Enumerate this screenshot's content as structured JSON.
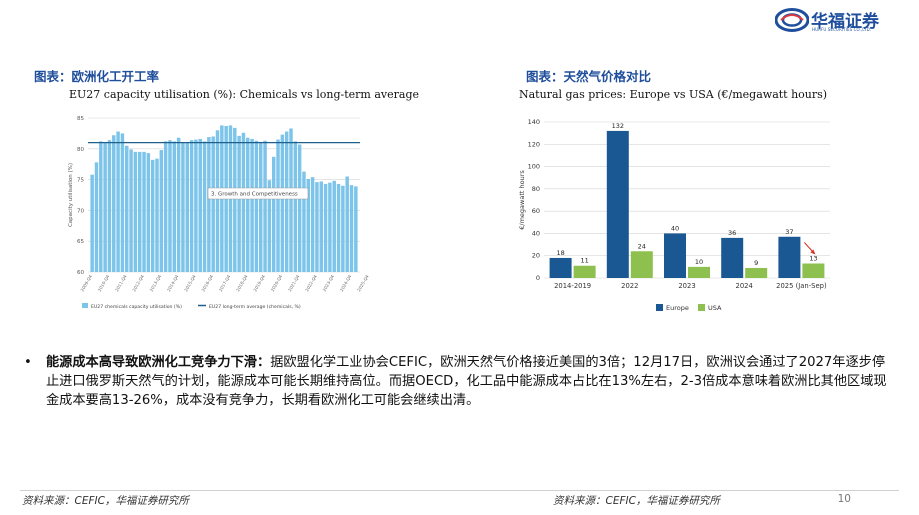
{
  "header": {
    "logo_name": "华福证券",
    "logo_sub": "HUAFU SECURITIES CO.,LTD."
  },
  "left_figure": {
    "section_title": "图表：欧洲化工开工率",
    "chart_title": "EU27 capacity utilisation (%): Chemicals vs long-term average"
  },
  "right_figure": {
    "section_title": "图表：天然气价格对比",
    "chart_title": "Natural gas prices: Europe vs USA (€/megawatt hours)"
  },
  "chart_data": [
    {
      "type": "bar",
      "title": "EU27 capacity utilisation (%): Chemicals vs long-term average",
      "ylabel": "Capacity utilisation (%)",
      "ylim": [
        60,
        85
      ],
      "yticks": [
        60,
        65,
        70,
        75,
        80,
        85
      ],
      "xtick_labels": [
        "2009-Q4",
        "2010-Q4",
        "2011-Q4",
        "2012-Q4",
        "2013-Q4",
        "2014-Q4",
        "2015-Q4",
        "2016-Q4",
        "2017-Q4",
        "2018-Q4",
        "2019-Q4",
        "2020-Q4",
        "2021-Q4",
        "2022-Q4",
        "2023-Q4",
        "2024-Q4",
        "2025-Q4"
      ],
      "series": [
        {
          "name": "EU27 chemicals capacity utilisation (%)",
          "color": "#7cc4ea",
          "values": [
            75.8,
            77.8,
            81.2,
            81.0,
            81.4,
            82.2,
            82.8,
            82.5,
            80.5,
            79.9,
            79.5,
            79.5,
            79.5,
            79.3,
            78.2,
            78.4,
            79.8,
            81.2,
            81.4,
            81.2,
            81.8,
            81.1,
            81.0,
            81.4,
            81.5,
            81.6,
            81.2,
            81.9,
            82.0,
            83.0,
            83.8,
            83.7,
            83.8,
            83.4,
            82.1,
            82.6,
            81.8,
            81.6,
            81.3,
            81.0,
            81.3,
            74.9,
            78.7,
            81.5,
            82.3,
            82.8,
            83.3,
            81.2,
            80.7,
            76.3,
            75.1,
            75.4,
            74.6,
            74.7,
            74.3,
            74.5,
            74.8,
            74.3,
            74.0,
            75.5,
            74.1,
            73.9
          ]
        },
        {
          "name": "EU27 long-term average (chemicals, %)",
          "type": "line",
          "color": "#1f5f8c",
          "values": [
            81.0
          ]
        }
      ],
      "annotations": [
        "3. Growth and Competitiveness"
      ],
      "legend": "bottom",
      "grid": true
    },
    {
      "type": "bar",
      "title": "Natural gas prices: Europe vs USA (€/megawatt hours)",
      "ylabel": "€/megawatt hours",
      "ylim": [
        0,
        140
      ],
      "yticks": [
        0,
        20,
        40,
        60,
        80,
        100,
        120,
        140
      ],
      "categories": [
        "2014-2019",
        "2022",
        "2023",
        "2024",
        "2025 (Jan-Sep)"
      ],
      "series": [
        {
          "name": "Europe",
          "color": "#1a5894",
          "values": [
            18,
            132,
            40,
            36,
            37
          ]
        },
        {
          "name": "USA",
          "color": "#8dc04e",
          "values": [
            11,
            24,
            10,
            9,
            13
          ]
        }
      ],
      "annotations": [
        "red arrow pointing to 2025 USA bar"
      ],
      "legend": "bottom",
      "grid": true
    }
  ],
  "bullet": {
    "heading": "能源成本高导致欧洲化工竞争力下滑：",
    "body": "据欧盟化学工业协会CEFIC，欧洲天然气价格接近美国的3倍；12月17日，欧洲议会通过了2027年逐步停止进口俄罗斯天然气的计划，能源成本可能长期维持高位。而据OECD，化工品中能源成本占比在13%左右，2-3倍成本意味着欧洲比其他区域现金成本要高13-26%，成本没有竞争力，长期看欧洲化工可能会继续出清。"
  },
  "footer": {
    "source_left": "资料来源：CEFIC，华福证券研究所",
    "source_right": "资料来源：CEFIC，华福证券研究所",
    "page_number": "10"
  }
}
